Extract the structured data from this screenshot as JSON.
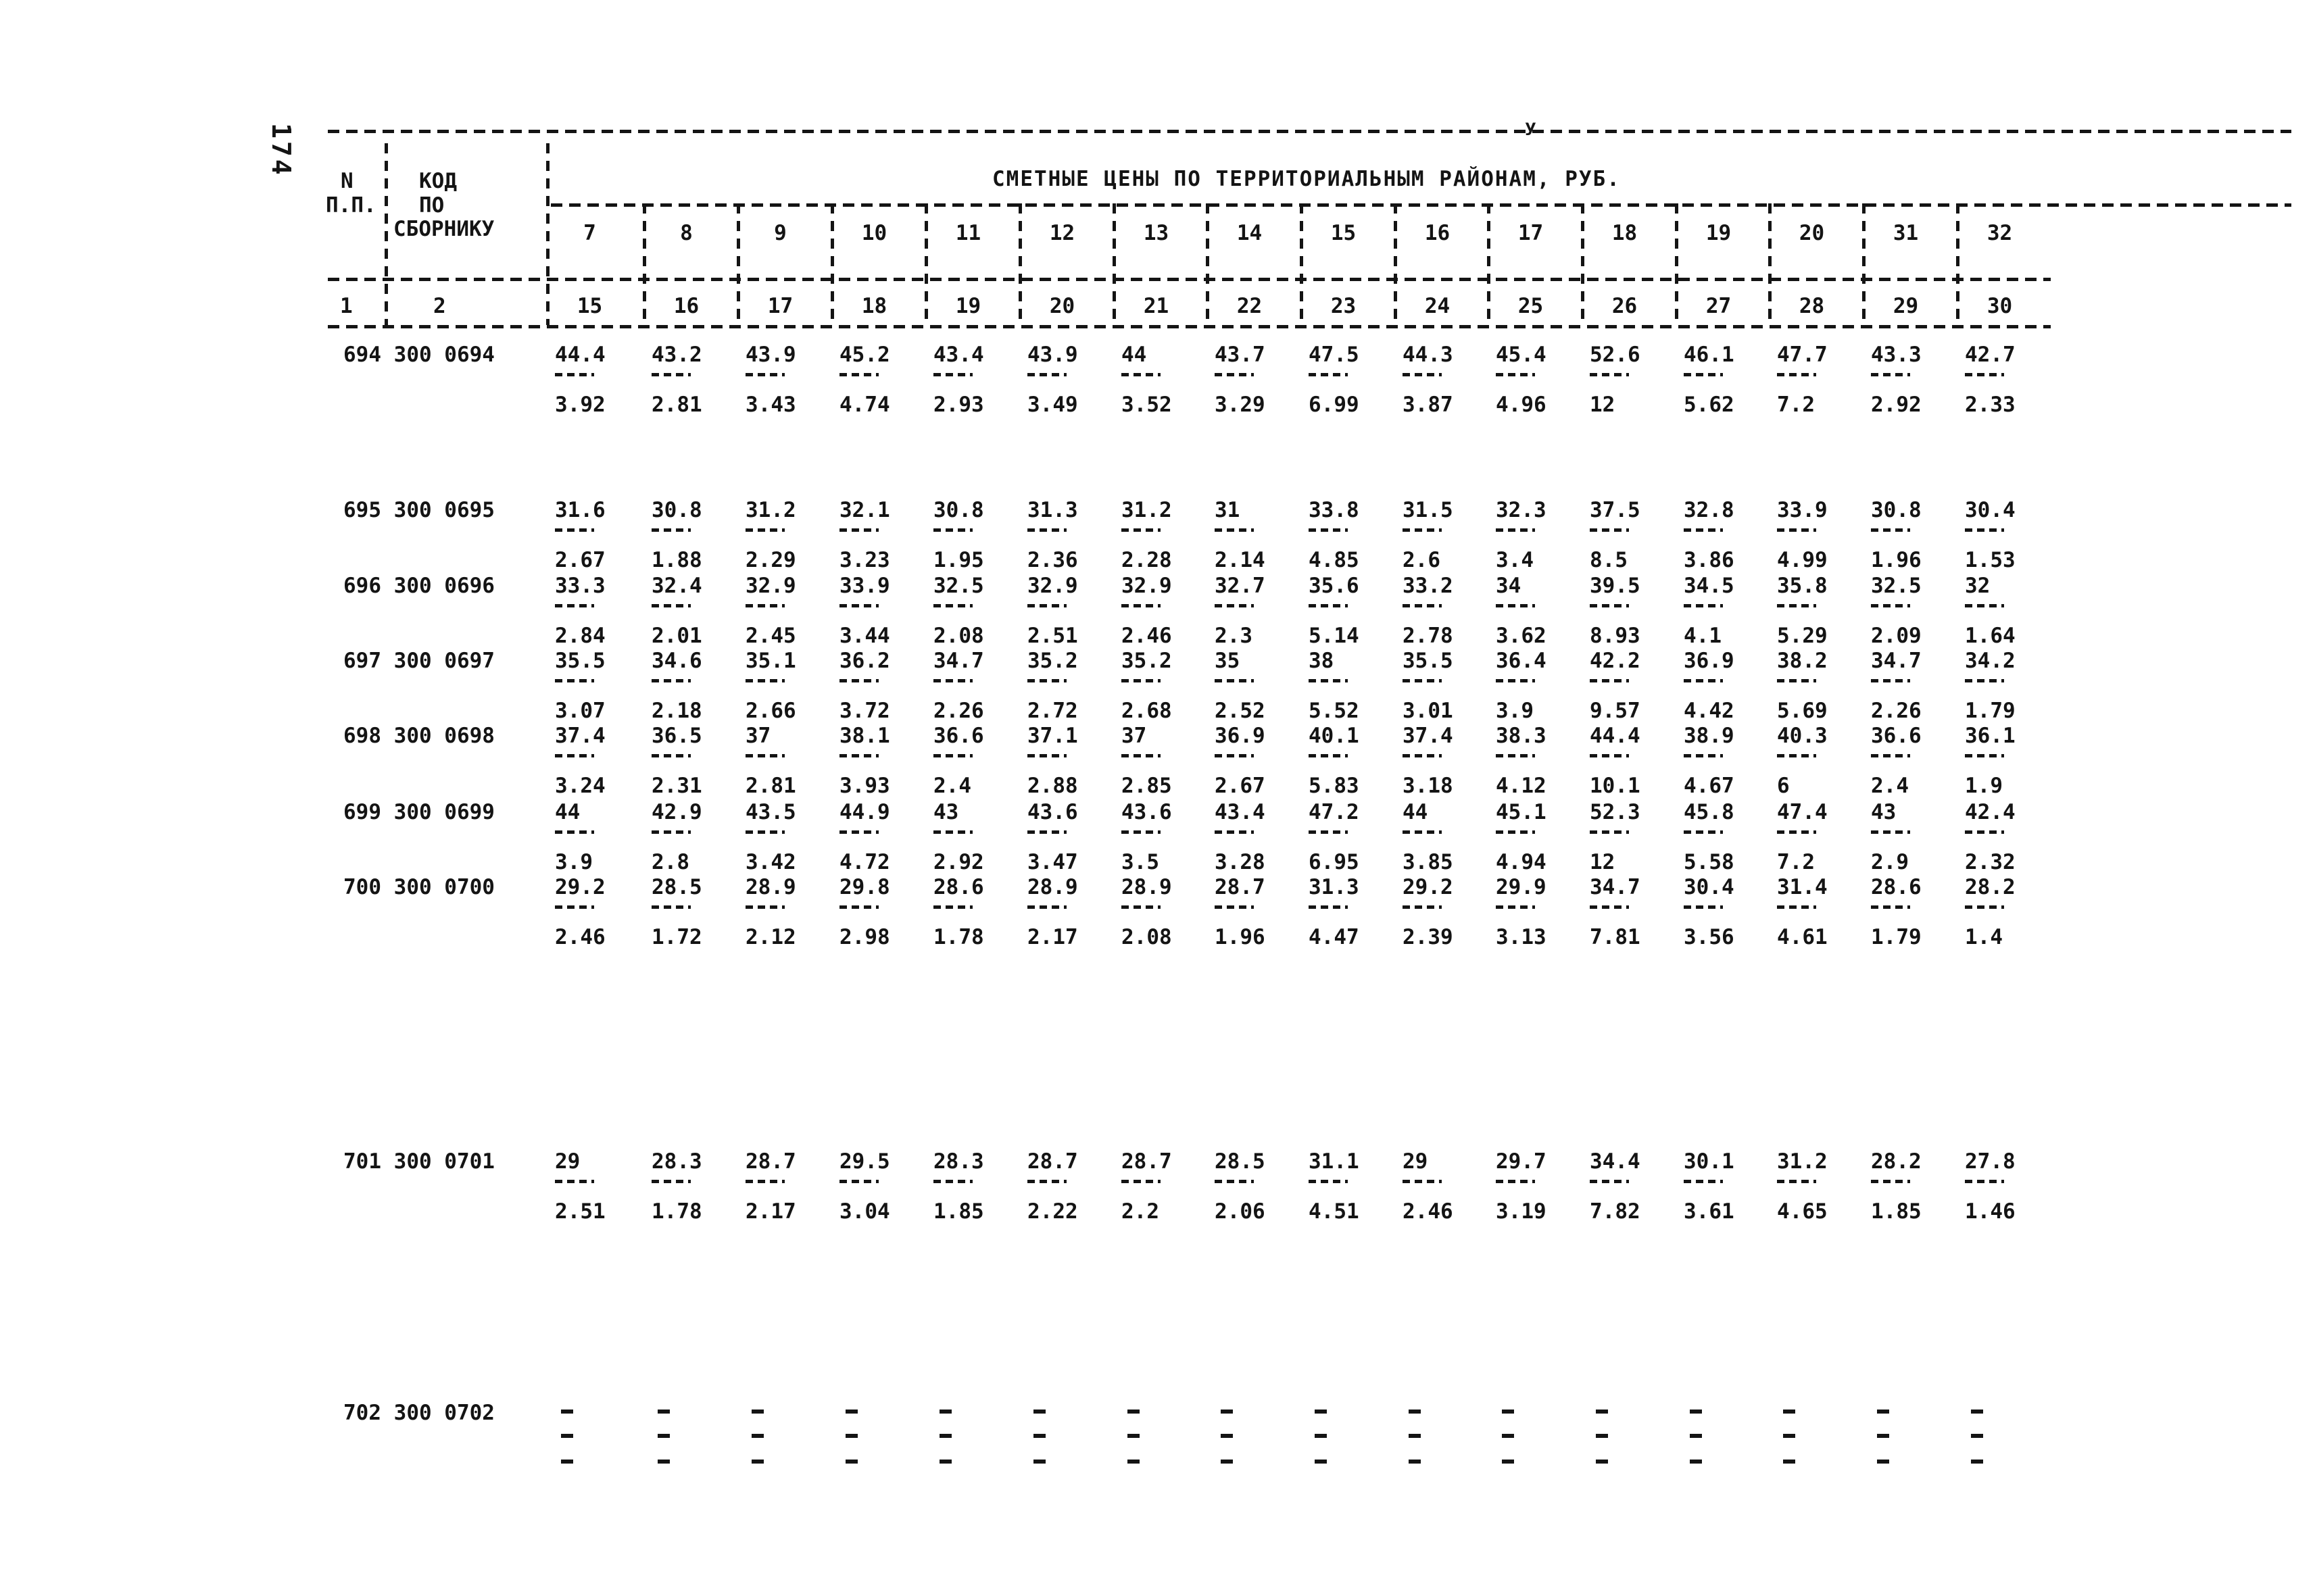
{
  "page": {
    "number": "174",
    "artifact_mark": "y"
  },
  "table": {
    "title": "СМЕТНЫЕ ЦЕНЫ ПО ТЕРРИТОРИАЛЬНЫМ РАЙОНАМ, РУБ.",
    "header": {
      "num_col_line1": "N",
      "num_col_line2": "П.П.",
      "code_col_line1": "КОД",
      "code_col_line2": "ПО",
      "code_col_line3": "СБОРНИКУ",
      "sub_num": "1",
      "sub_code": "2",
      "district_row_top": [
        "7",
        "8",
        "9",
        "10",
        "11",
        "12",
        "13",
        "14",
        "15",
        "16",
        "17",
        "18",
        "19",
        "20",
        "31",
        "32"
      ],
      "district_row_bottom": [
        "15",
        "16",
        "17",
        "18",
        "19",
        "20",
        "21",
        "22",
        "23",
        "24",
        "25",
        "26",
        "27",
        "28",
        "29",
        "30"
      ]
    },
    "rows": [
      {
        "code": "694 300 0694",
        "cells": [
          [
            "44.4",
            "3.92"
          ],
          [
            "43.2",
            "2.81"
          ],
          [
            "43.9",
            "3.43"
          ],
          [
            "45.2",
            "4.74"
          ],
          [
            "43.4",
            "2.93"
          ],
          [
            "43.9",
            "3.49"
          ],
          [
            "44",
            "3.52"
          ],
          [
            "43.7",
            "3.29"
          ],
          [
            "47.5",
            "6.99"
          ],
          [
            "44.3",
            "3.87"
          ],
          [
            "45.4",
            "4.96"
          ],
          [
            "52.6",
            "12"
          ],
          [
            "46.1",
            "5.62"
          ],
          [
            "47.7",
            "7.2"
          ],
          [
            "43.3",
            "2.92"
          ],
          [
            "42.7",
            "2.33"
          ]
        ]
      },
      {
        "code": "695 300 0695",
        "cells": [
          [
            "31.6",
            "2.67"
          ],
          [
            "30.8",
            "1.88"
          ],
          [
            "31.2",
            "2.29"
          ],
          [
            "32.1",
            "3.23"
          ],
          [
            "30.8",
            "1.95"
          ],
          [
            "31.3",
            "2.36"
          ],
          [
            "31.2",
            "2.28"
          ],
          [
            "31",
            "2.14"
          ],
          [
            "33.8",
            "4.85"
          ],
          [
            "31.5",
            "2.6"
          ],
          [
            "32.3",
            "3.4"
          ],
          [
            "37.5",
            "8.5"
          ],
          [
            "32.8",
            "3.86"
          ],
          [
            "33.9",
            "4.99"
          ],
          [
            "30.8",
            "1.96"
          ],
          [
            "30.4",
            "1.53"
          ]
        ]
      },
      {
        "code": "696 300 0696",
        "cells": [
          [
            "33.3",
            "2.84"
          ],
          [
            "32.4",
            "2.01"
          ],
          [
            "32.9",
            "2.45"
          ],
          [
            "33.9",
            "3.44"
          ],
          [
            "32.5",
            "2.08"
          ],
          [
            "32.9",
            "2.51"
          ],
          [
            "32.9",
            "2.46"
          ],
          [
            "32.7",
            "2.3"
          ],
          [
            "35.6",
            "5.14"
          ],
          [
            "33.2",
            "2.78"
          ],
          [
            "34",
            "3.62"
          ],
          [
            "39.5",
            "8.93"
          ],
          [
            "34.5",
            "4.1"
          ],
          [
            "35.8",
            "5.29"
          ],
          [
            "32.5",
            "2.09"
          ],
          [
            "32",
            "1.64"
          ]
        ]
      },
      {
        "code": "697 300 0697",
        "cells": [
          [
            "35.5",
            "3.07"
          ],
          [
            "34.6",
            "2.18"
          ],
          [
            "35.1",
            "2.66"
          ],
          [
            "36.2",
            "3.72"
          ],
          [
            "34.7",
            "2.26"
          ],
          [
            "35.2",
            "2.72"
          ],
          [
            "35.2",
            "2.68"
          ],
          [
            "35",
            "2.52"
          ],
          [
            "38",
            "5.52"
          ],
          [
            "35.5",
            "3.01"
          ],
          [
            "36.4",
            "3.9"
          ],
          [
            "42.2",
            "9.57"
          ],
          [
            "36.9",
            "4.42"
          ],
          [
            "38.2",
            "5.69"
          ],
          [
            "34.7",
            "2.26"
          ],
          [
            "34.2",
            "1.79"
          ]
        ]
      },
      {
        "code": "698 300 0698",
        "cells": [
          [
            "37.4",
            "3.24"
          ],
          [
            "36.5",
            "2.31"
          ],
          [
            "37",
            "2.81"
          ],
          [
            "38.1",
            "3.93"
          ],
          [
            "36.6",
            "2.4"
          ],
          [
            "37.1",
            "2.88"
          ],
          [
            "37",
            "2.85"
          ],
          [
            "36.9",
            "2.67"
          ],
          [
            "40.1",
            "5.83"
          ],
          [
            "37.4",
            "3.18"
          ],
          [
            "38.3",
            "4.12"
          ],
          [
            "44.4",
            "10.1"
          ],
          [
            "38.9",
            "4.67"
          ],
          [
            "40.3",
            "6"
          ],
          [
            "36.6",
            "2.4"
          ],
          [
            "36.1",
            "1.9"
          ]
        ]
      },
      {
        "code": "699 300 0699",
        "cells": [
          [
            "44",
            "3.9"
          ],
          [
            "42.9",
            "2.8"
          ],
          [
            "43.5",
            "3.42"
          ],
          [
            "44.9",
            "4.72"
          ],
          [
            "43",
            "2.92"
          ],
          [
            "43.6",
            "3.47"
          ],
          [
            "43.6",
            "3.5"
          ],
          [
            "43.4",
            "3.28"
          ],
          [
            "47.2",
            "6.95"
          ],
          [
            "44",
            "3.85"
          ],
          [
            "45.1",
            "4.94"
          ],
          [
            "52.3",
            "12"
          ],
          [
            "45.8",
            "5.58"
          ],
          [
            "47.4",
            "7.2"
          ],
          [
            "43",
            "2.9"
          ],
          [
            "42.4",
            "2.32"
          ]
        ]
      },
      {
        "code": "700 300 0700",
        "cells": [
          [
            "29.2",
            "2.46"
          ],
          [
            "28.5",
            "1.72"
          ],
          [
            "28.9",
            "2.12"
          ],
          [
            "29.8",
            "2.98"
          ],
          [
            "28.6",
            "1.78"
          ],
          [
            "28.9",
            "2.17"
          ],
          [
            "28.9",
            "2.08"
          ],
          [
            "28.7",
            "1.96"
          ],
          [
            "31.3",
            "4.47"
          ],
          [
            "29.2",
            "2.39"
          ],
          [
            "29.9",
            "3.13"
          ],
          [
            "34.7",
            "7.81"
          ],
          [
            "30.4",
            "3.56"
          ],
          [
            "31.4",
            "4.61"
          ],
          [
            "28.6",
            "1.79"
          ],
          [
            "28.2",
            "1.4"
          ]
        ]
      },
      {
        "code": "701 300 0701",
        "cells": [
          [
            "29",
            "2.51"
          ],
          [
            "28.3",
            "1.78"
          ],
          [
            "28.7",
            "2.17"
          ],
          [
            "29.5",
            "3.04"
          ],
          [
            "28.3",
            "1.85"
          ],
          [
            "28.7",
            "2.22"
          ],
          [
            "28.7",
            "2.2"
          ],
          [
            "28.5",
            "2.06"
          ],
          [
            "31.1",
            "4.51"
          ],
          [
            "29",
            "2.46"
          ],
          [
            "29.7",
            "3.19"
          ],
          [
            "34.4",
            "7.82"
          ],
          [
            "30.1",
            "3.61"
          ],
          [
            "31.2",
            "4.65"
          ],
          [
            "28.2",
            "1.85"
          ],
          [
            "27.8",
            "1.46"
          ]
        ]
      },
      {
        "code": "702 300 0702",
        "dash_only": true
      }
    ]
  }
}
